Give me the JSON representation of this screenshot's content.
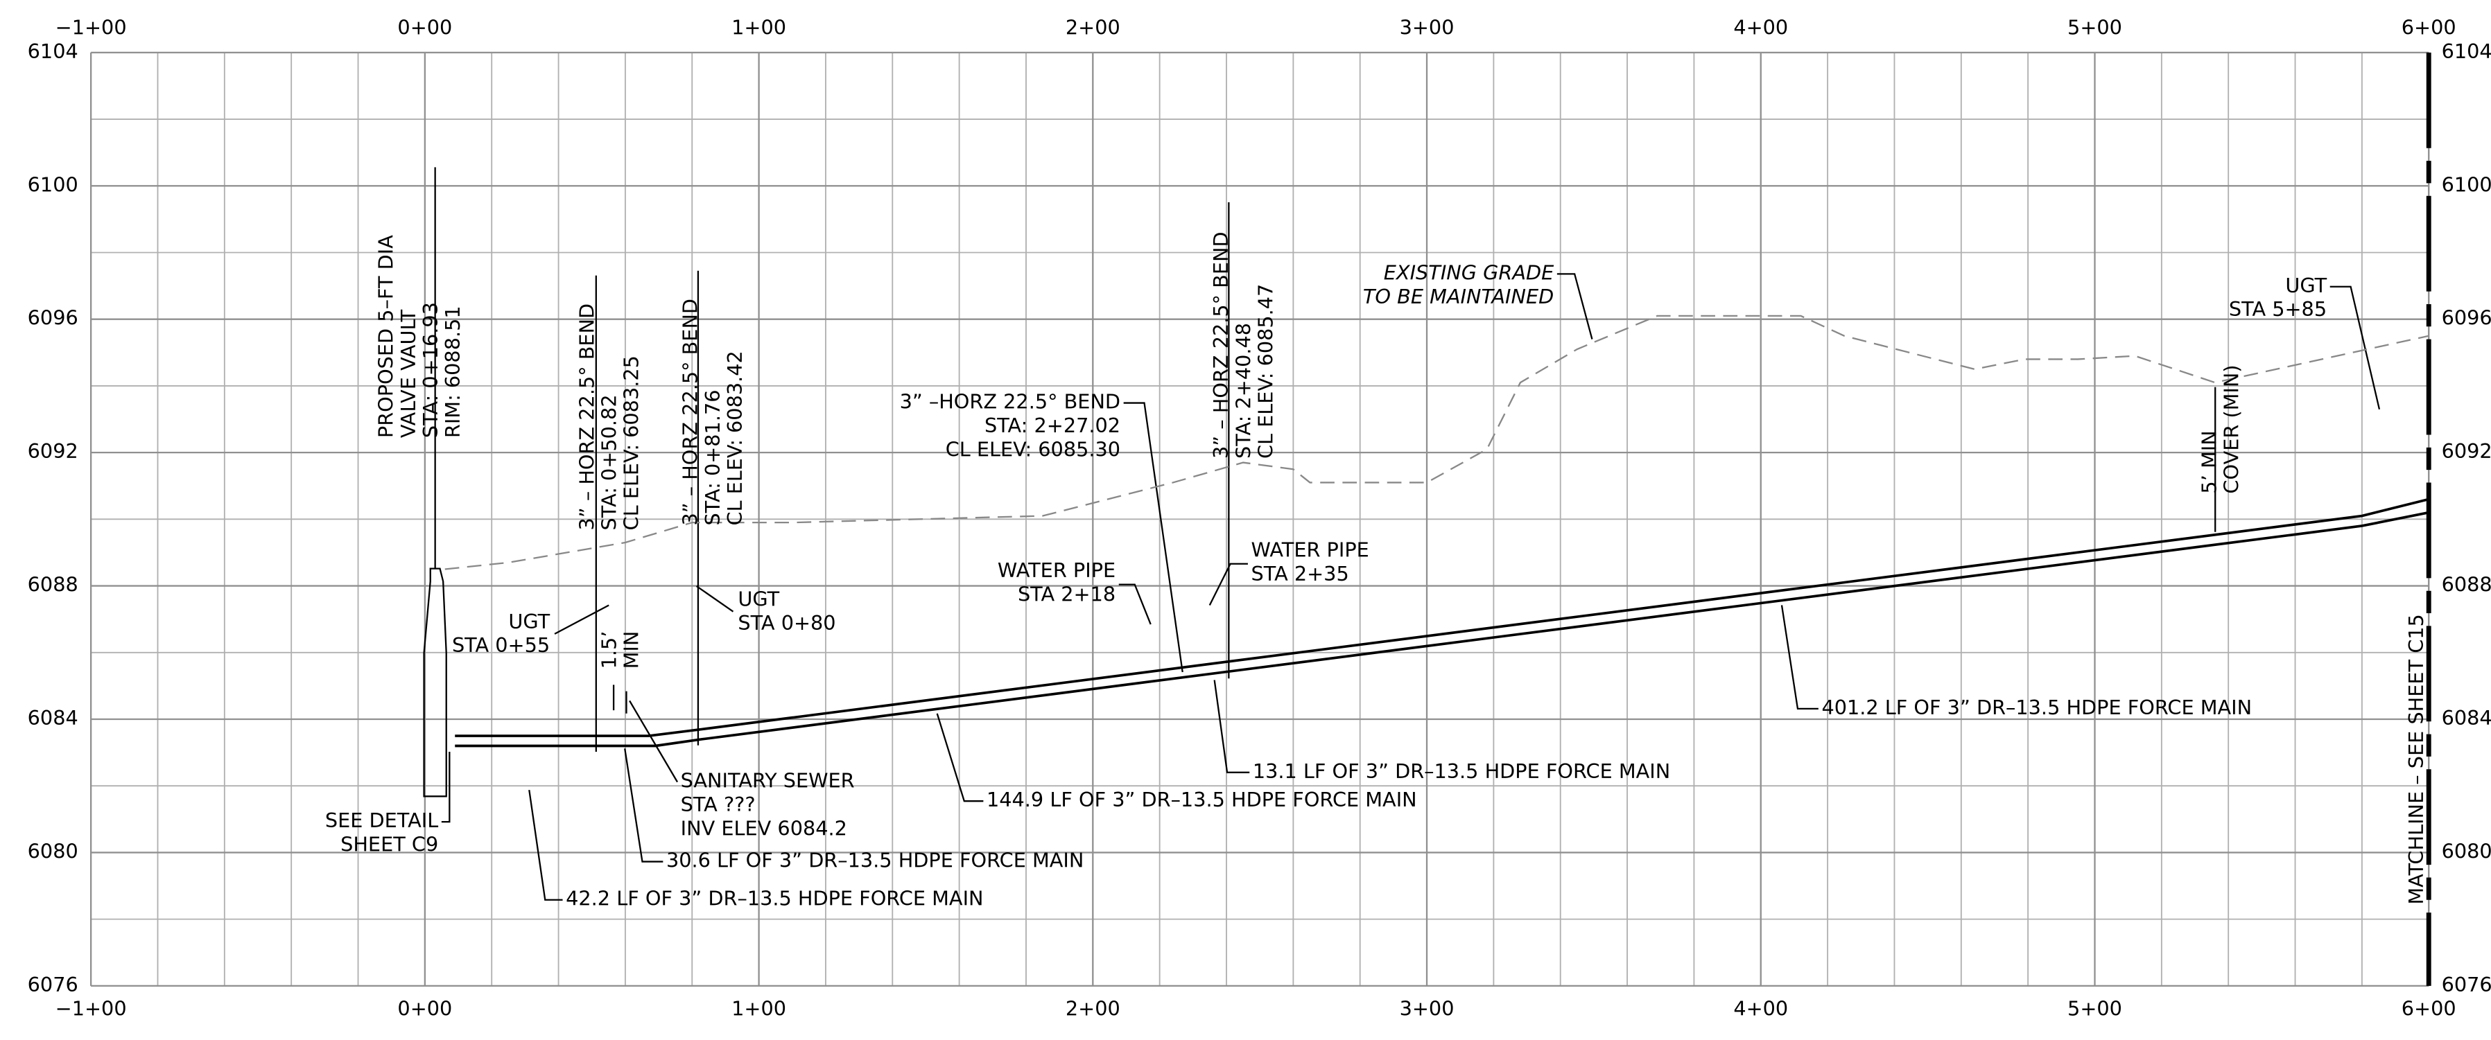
{
  "chart_data": {
    "type": "line",
    "xlim": [
      -100,
      600
    ],
    "ylim": [
      6076,
      6104
    ],
    "xticks": [
      {
        "value": -100,
        "label": "−1+00"
      },
      {
        "value": 0,
        "label": "0+00"
      },
      {
        "value": 100,
        "label": "1+00"
      },
      {
        "value": 200,
        "label": "2+00"
      },
      {
        "value": 300,
        "label": "3+00"
      },
      {
        "value": 400,
        "label": "4+00"
      },
      {
        "value": 500,
        "label": "5+00"
      },
      {
        "value": 600,
        "label": "6+00"
      }
    ],
    "yticks": [
      6076,
      6080,
      6084,
      6088,
      6092,
      6096,
      6100,
      6104
    ],
    "grid": {
      "x_step": 20,
      "y_step": 2
    },
    "series": [
      {
        "name": "existing grade",
        "color": "#888888",
        "dashed": true,
        "x": [
          6,
          25,
          60,
          80,
          110,
          185,
          224,
          245,
          260,
          265,
          300,
          318,
          328,
          345,
          369,
          412,
          425,
          464,
          479,
          495,
          512,
          536,
          600
        ],
        "values": [
          6088.5,
          6088.7,
          6089.3,
          6089.9,
          6089.9,
          6090.1,
          6091.1,
          6091.7,
          6091.5,
          6091.1,
          6091.1,
          6092.1,
          6094.1,
          6095.1,
          6096.1,
          6096.1,
          6095.5,
          6094.5,
          6094.8,
          6094.8,
          6094.9,
          6094.1,
          6095.5
        ]
      },
      {
        "name": "pipe top",
        "color": "#000000",
        "dashed": false,
        "x": [
          9,
          67,
          83,
          580,
          600
        ],
        "values": [
          6083.5,
          6083.5,
          6083.7,
          6090.1,
          6090.6
        ]
      },
      {
        "name": "pipe bottom",
        "color": "#000000",
        "dashed": false,
        "x": [
          9,
          69,
          83,
          580,
          600
        ],
        "values": [
          6083.2,
          6083.2,
          6083.4,
          6089.8,
          6090.2
        ]
      }
    ],
    "annotations": [
      [
        "PROPOSED 5–FT DIA",
        "VALVE VAULT",
        "STA: 0+16.93",
        "RIM: 6088.51"
      ],
      [
        "3” – HORZ 22.5° BEND",
        "STA: 0+50.82",
        "CL ELEV: 6083.25"
      ],
      [
        "3” – HORZ 22.5° BEND",
        "STA: 0+81.76",
        "CL ELEV: 6083.42"
      ],
      [
        "3” –HORZ 22.5° BEND",
        "STA: 2+27.02",
        "CL ELEV: 6085.30"
      ],
      [
        "3” – HORZ 22.5° BEND",
        "STA: 2+40.48",
        "CL ELEV: 6085.47"
      ],
      [
        "EXISTING GRADE",
        "TO BE MAINTAINED"
      ],
      [
        "UGT",
        "STA 5+85"
      ],
      [
        "UGT",
        "STA 0+55"
      ],
      [
        "1.5’",
        "MIN"
      ],
      [
        "UGT",
        "STA 0+80"
      ],
      [
        "WATER PIPE",
        "STA 2+18"
      ],
      [
        "WATER PIPE",
        "STA 2+35"
      ],
      [
        "5’ MIN",
        "COVER (MIN)"
      ],
      [
        "SEE DETAIL",
        "SHEET C9"
      ],
      [
        "SANITARY SEWER",
        "STA ???",
        "INV ELEV 6084.2"
      ],
      [
        "30.6 LF OF 3” DR–13.5 HDPE FORCE MAIN"
      ],
      [
        "42.2 LF OF 3” DR–13.5 HDPE FORCE MAIN"
      ],
      [
        "144.9 LF OF 3” DR–13.5 HDPE FORCE MAIN"
      ],
      [
        "13.1 LF OF 3” DR–13.5 HDPE FORCE MAIN"
      ],
      [
        "401.2 LF OF 3” DR–13.5 HDPE FORCE MAIN"
      ],
      [
        "MATCHLINE – SEE SHEET C15"
      ]
    ]
  }
}
